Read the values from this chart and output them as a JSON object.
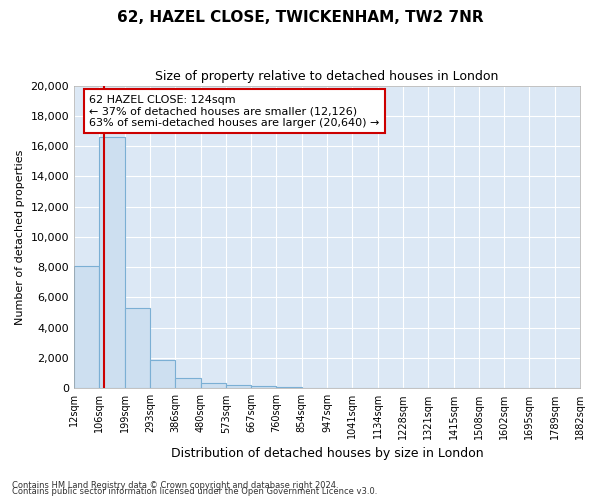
{
  "title1": "62, HAZEL CLOSE, TWICKENHAM, TW2 7NR",
  "title2": "Size of property relative to detached houses in London",
  "xlabel": "Distribution of detached houses by size in London",
  "ylabel": "Number of detached properties",
  "bar_values": [
    8100,
    16600,
    5300,
    1850,
    700,
    350,
    200,
    150,
    100,
    0,
    0,
    0,
    0,
    0,
    0,
    0,
    0,
    0,
    0,
    0
  ],
  "bar_labels": [
    "12sqm",
    "106sqm",
    "199sqm",
    "293sqm",
    "386sqm",
    "480sqm",
    "573sqm",
    "667sqm",
    "760sqm",
    "854sqm",
    "947sqm",
    "1041sqm",
    "1134sqm",
    "1228sqm",
    "1321sqm",
    "1415sqm",
    "1508sqm",
    "1602sqm",
    "1695sqm",
    "1789sqm",
    "1882sqm"
  ],
  "bar_color": "#cddff0",
  "bar_edge_color": "#7bafd4",
  "vline_color": "#cc0000",
  "annotation_title": "62 HAZEL CLOSE: 124sqm",
  "annotation_line1": "← 37% of detached houses are smaller (12,126)",
  "annotation_line2": "63% of semi-detached houses are larger (20,640) →",
  "annotation_box_color": "#ffffff",
  "annotation_box_edge": "#cc0000",
  "ylim": [
    0,
    20000
  ],
  "yticks": [
    0,
    2000,
    4000,
    6000,
    8000,
    10000,
    12000,
    14000,
    16000,
    18000,
    20000
  ],
  "bg_color": "#dce8f5",
  "fig_bg_color": "#ffffff",
  "grid_color": "#ffffff",
  "footer1": "Contains HM Land Registry data © Crown copyright and database right 2024.",
  "footer2": "Contains public sector information licensed under the Open Government Licence v3.0."
}
